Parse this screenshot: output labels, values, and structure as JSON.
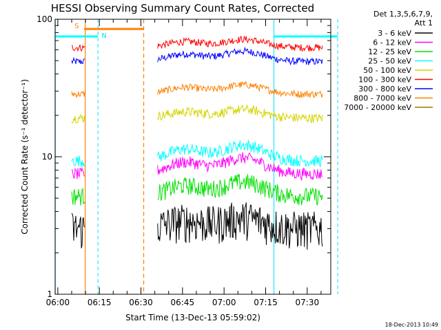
{
  "chart_data": {
    "type": "line",
    "title": "HESSI Observing Summary Count Rates, Corrected",
    "xlabel": "Start Time (13-Dec-13 05:59:02)",
    "ylabel": "Corrected Count Rate (s⁻¹ detector⁻¹)",
    "y_scale": "log",
    "ylim": [
      1,
      100
    ],
    "xlim": [
      "05:59:02",
      "07:38:30"
    ],
    "x_ticks": [
      "06:00",
      "06:15",
      "06:30",
      "06:45",
      "07:00",
      "07:15",
      "07:30"
    ],
    "y_ticks": [
      "1",
      "10",
      "100"
    ],
    "legend": {
      "header": [
        "Det 1,3,5,6,7,9,",
        "Att 1"
      ],
      "placement": "right",
      "entries": [
        {
          "label": "3 - 6 keV",
          "color": "#000000"
        },
        {
          "label": "6 - 12 keV",
          "color": "#ff00ff"
        },
        {
          "label": "12 - 25 keV",
          "color": "#00e000"
        },
        {
          "label": "25 - 50 keV",
          "color": "#00ffff"
        },
        {
          "label": "50 - 100 keV",
          "color": "#d4d400"
        },
        {
          "label": "100 - 300 keV",
          "color": "#ff0000"
        },
        {
          "label": "300 - 800 keV",
          "color": "#0000ff"
        },
        {
          "label": "800 - 7000 keV",
          "color": "#ff8000"
        },
        {
          "label": "7000 - 20000 keV",
          "color": "#9a7800"
        }
      ]
    },
    "segments": [
      [
        5.0,
        9.9
      ],
      [
        36.0,
        95.5
      ]
    ],
    "series": [
      {
        "color": "#0000ff",
        "base": 52,
        "bump": 0.18,
        "noise": 0.06
      },
      {
        "color": "#ff0000",
        "base": 65,
        "bump": 0.14,
        "noise": 0.06
      },
      {
        "color": "#ff8000",
        "base": 30,
        "bump": 0.16,
        "noise": 0.06
      },
      {
        "color": "#d4d400",
        "base": 20,
        "bump": 0.15,
        "noise": 0.08
      },
      {
        "color": "#00ffff",
        "base": 10.2,
        "bump": 0.28,
        "noise": 0.1
      },
      {
        "color": "#ff00ff",
        "base": 8.2,
        "bump": 0.28,
        "noise": 0.1
      },
      {
        "color": "#00e000",
        "base": 5.6,
        "bump": 0.25,
        "noise": 0.15
      },
      {
        "color": "#000000",
        "base": 3.2,
        "bump": 0.18,
        "noise": 0.32
      }
    ],
    "annotations": {
      "saa_label": "S",
      "night_label": "N",
      "saa_interval": [
        9.5,
        31.0
      ],
      "night_intervals": [
        [
          -0.9,
          14.5
        ],
        [
          78.0,
          101.0
        ]
      ],
      "vline_cyan_solid": [
        -0.9,
        78.0
      ],
      "vline_cyan_dashed": [
        14.5,
        101.0
      ],
      "vline_orange_solid": [
        9.9
      ],
      "vline_orange_dashed": [
        31.0
      ],
      "night_level": 75,
      "saa_level": 85
    }
  },
  "timestamp": "18-Dec-2013 10:49"
}
